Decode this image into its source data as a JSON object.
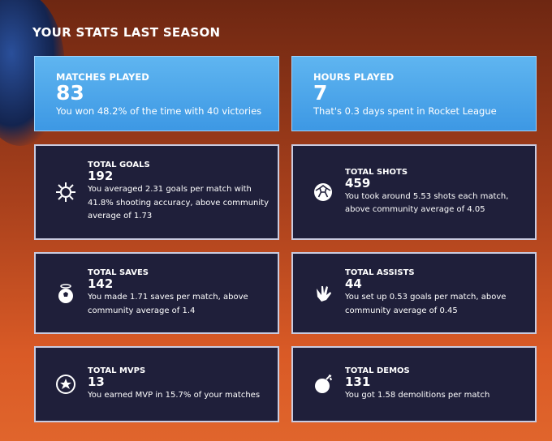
{
  "header": {
    "title": "YOUR STATS LAST SEASON"
  },
  "highlights": [
    {
      "label": "MATCHES PLAYED",
      "value": 83,
      "description": "You won 48.2% of the time with 40 victories"
    },
    {
      "label": "HOURS PLAYED",
      "value": 7,
      "description": "That's 0.3 days spent in Rocket League"
    }
  ],
  "cards": [
    {
      "label": "TOTAL GOALS",
      "value": 192,
      "description": "You averaged 2.31 goals per match with 41.8% shooting accuracy, above community average of 1.73"
    },
    {
      "label": "TOTAL SHOTS",
      "value": 459,
      "description": "You took around 5.53 shots each match, above community average of 4.05"
    },
    {
      "label": "TOTAL SAVES",
      "value": 142,
      "description": "You made 1.71 saves per match, above community average of 1.4"
    },
    {
      "label": "TOTAL ASSISTS",
      "value": 44,
      "description": "You set up 0.53 goals per match, above community average of 0.45"
    },
    {
      "label": "TOTAL MVPS",
      "value": 13,
      "description": "You earned MVP in 15.7% of your matches"
    },
    {
      "label": "TOTAL DEMOS",
      "value": 131,
      "description": "You got 1.58 demolitions per match"
    }
  ]
}
